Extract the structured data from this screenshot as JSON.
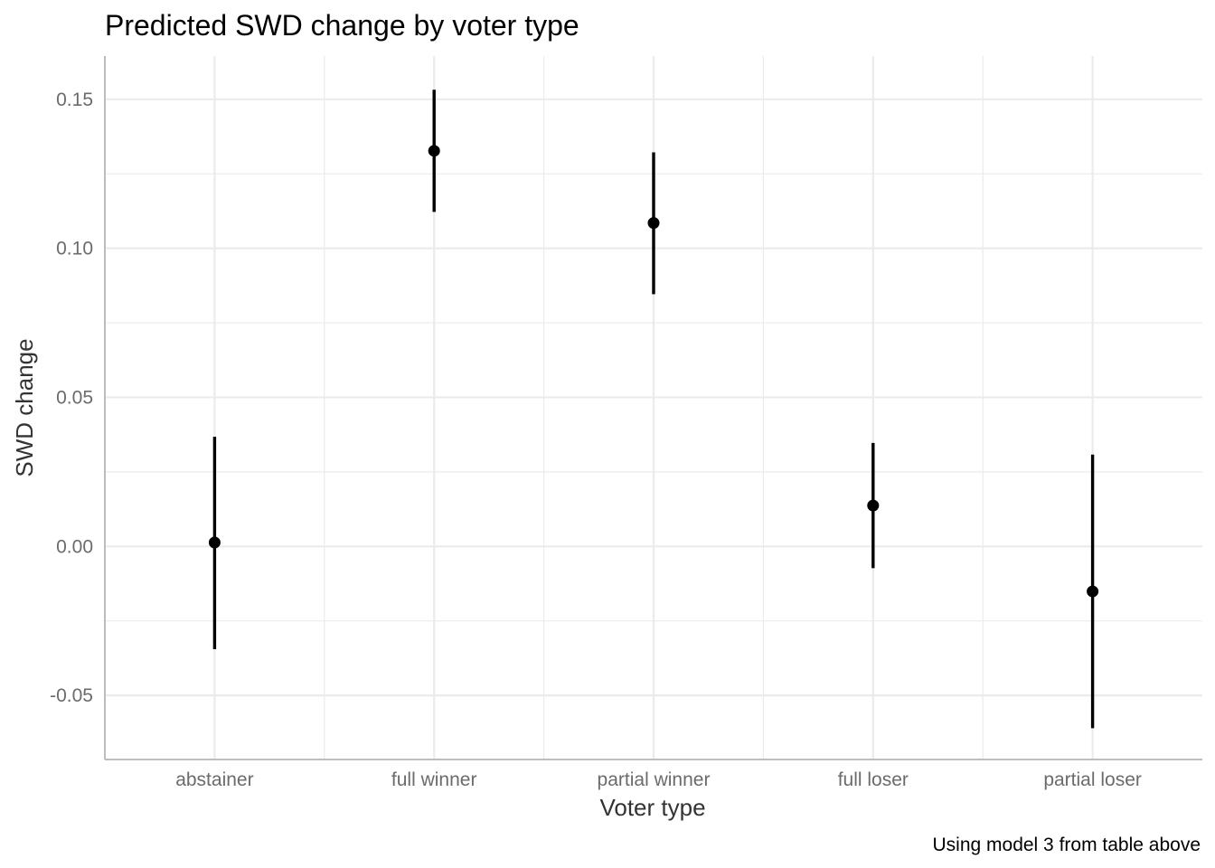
{
  "chart_data": {
    "type": "scatter",
    "title": "Predicted SWD change by voter type",
    "xlabel": "Voter type",
    "ylabel": "SWD change",
    "caption": "Using model 3 from table above",
    "categories": [
      "abstainer",
      "full winner",
      "partial winner",
      "full loser",
      "partial loser"
    ],
    "y_ticks": [
      -0.05,
      0.0,
      0.05,
      0.1,
      0.15
    ],
    "y_tick_labels": [
      "-0.05",
      "0.00",
      "0.05",
      "0.10",
      "0.15"
    ],
    "ylim": [
      -0.0715,
      0.1645
    ],
    "grid": true,
    "colors": {
      "point": "#000000",
      "grid": "#ebebeb",
      "axis": "#bdbdbd"
    },
    "points": [
      {
        "category": "abstainer",
        "estimate": 0.0013,
        "lower": -0.0345,
        "upper": 0.0368
      },
      {
        "category": "full winner",
        "estimate": 0.1327,
        "lower": 0.1122,
        "upper": 0.1532
      },
      {
        "category": "partial winner",
        "estimate": 0.1085,
        "lower": 0.0846,
        "upper": 0.1322
      },
      {
        "category": "full loser",
        "estimate": 0.0137,
        "lower": -0.0073,
        "upper": 0.0347
      },
      {
        "category": "partial loser",
        "estimate": -0.0151,
        "lower": -0.061,
        "upper": 0.0308
      }
    ]
  }
}
